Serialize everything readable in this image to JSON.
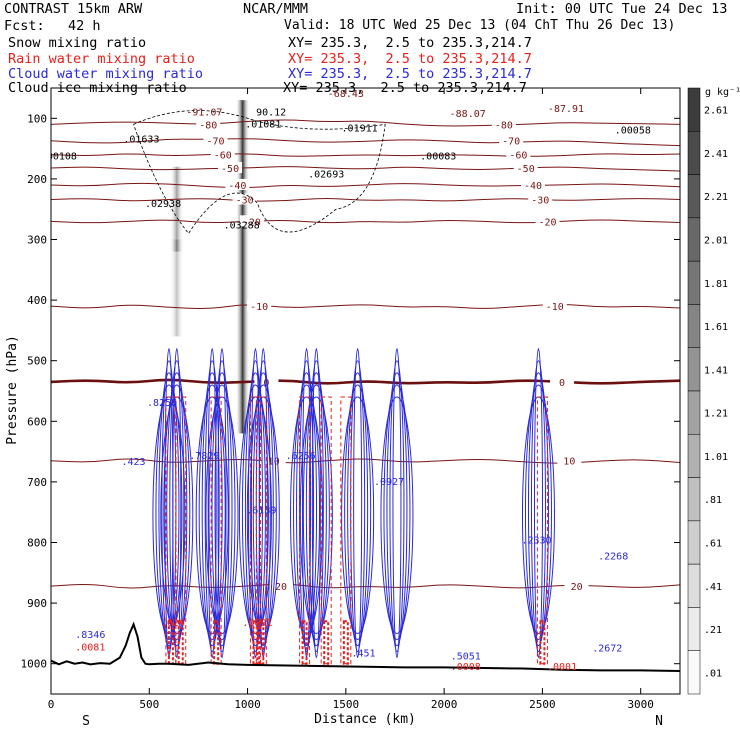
{
  "header": {
    "model": "CONTRAST 15km ARW",
    "center": "NCAR/MMM",
    "init": "Init: 00 UTC Tue 24 Dec 13",
    "fcst_label": "Fcst:",
    "fcst_value": "42 h",
    "valid": "Valid: 18 UTC Wed 25 Dec 13 (04 ChT Thu 26 Dec 13)",
    "fields": [
      {
        "label": "Snow mixing ratio",
        "xy": "XY= 235.3,  2.5 to 235.3,214.7",
        "color": "#000000"
      },
      {
        "label": "Rain water mixing ratio",
        "xy": "XY= 235.3,  2.5 to 235.3,214.7",
        "color": "#e8201c"
      },
      {
        "label": "Cloud water mixing ratio",
        "xy": "XY= 235.3,  2.5 to 235.3,214.7",
        "color": "#2a2ad8"
      },
      {
        "label": "Cloud ice mixing ratio",
        "xy": "XY= 235.3,  2.5 to 235.3,214.7",
        "color": "#000000"
      }
    ]
  },
  "chart_data": {
    "type": "cross-section",
    "title": "Vertical cross-section of hydrometeor mixing ratios and temperature",
    "xlabel": "Distance (km)",
    "ylabel": "Pressure (hPa)",
    "xlim": [
      0,
      3200
    ],
    "ylim": [
      1050,
      50
    ],
    "x_ticks": [
      0,
      500,
      1000,
      1500,
      2000,
      2500,
      3000
    ],
    "y_ticks": [
      100,
      200,
      300,
      400,
      500,
      600,
      700,
      800,
      900,
      1000
    ],
    "end_labels": {
      "left": "S",
      "right": "N"
    },
    "colorbar": {
      "unit": "g kg⁻¹",
      "labels": [
        "2.61",
        "2.41",
        "2.21",
        "2.01",
        "1.81",
        "1.61",
        "1.41",
        "1.21",
        "1.01",
        ".81",
        ".61",
        ".41",
        ".21",
        ".01"
      ]
    },
    "temperature_isotherms": [
      {
        "label": "-80",
        "p": 110,
        "x": [
          0,
          200,
          400,
          600,
          800,
          1000,
          1200,
          1400,
          1600,
          1800,
          2000,
          2200,
          2400,
          2600,
          2800,
          3000,
          3200
        ],
        "dp": [
          0,
          -3,
          -4,
          -2,
          0,
          -5,
          -8,
          -4,
          -6,
          0,
          3,
          2,
          0,
          -3,
          -2,
          -1,
          0
        ]
      },
      {
        "label": "-70",
        "p": 137,
        "x": [
          0,
          200,
          400,
          600,
          800,
          1000,
          1200,
          1400,
          1600,
          1800,
          2000,
          2200,
          2400,
          2600,
          2800,
          3000,
          3200
        ],
        "dp": [
          0,
          4,
          3,
          -3,
          -2,
          -4,
          0,
          3,
          1,
          -2,
          0,
          4,
          2,
          0,
          3,
          6,
          8
        ]
      },
      {
        "label": "-60",
        "p": 160,
        "x": [
          0,
          200,
          400,
          600,
          800,
          1000,
          1200,
          1400,
          1600,
          1800,
          2000,
          2200,
          2400,
          2600,
          2800,
          3000,
          3200
        ],
        "dp": [
          0,
          2,
          -2,
          2,
          0,
          -2,
          3,
          2,
          0,
          2,
          0,
          1,
          3,
          2,
          -2,
          0,
          -1
        ]
      },
      {
        "label": "-50",
        "p": 182,
        "x": [
          0,
          200,
          400,
          600,
          800,
          1000,
          1200,
          1400,
          1600,
          1800,
          2000,
          2200,
          2400,
          2600,
          2800,
          3000,
          3200
        ],
        "dp": [
          0,
          -2,
          2,
          3,
          1,
          0,
          -3,
          0,
          2,
          -2,
          1,
          3,
          0,
          -2,
          1,
          3,
          5
        ]
      },
      {
        "label": "-40",
        "p": 210,
        "x": [
          0,
          200,
          400,
          600,
          800,
          1000,
          1200,
          1400,
          1600,
          1800,
          2000,
          2200,
          2400,
          2600,
          2800,
          3000,
          3200
        ],
        "dp": [
          0,
          2,
          -3,
          -2,
          3,
          5,
          0,
          3,
          0,
          -3,
          0,
          2,
          1,
          0,
          -2,
          0,
          3
        ]
      },
      {
        "label": "-30",
        "p": 234,
        "x": [
          0,
          200,
          400,
          600,
          800,
          1000,
          1200,
          1400,
          1600,
          1800,
          2000,
          2200,
          2400,
          2600,
          2800,
          3000,
          3200
        ],
        "dp": [
          0,
          -2,
          3,
          0,
          -2,
          3,
          2,
          -3,
          2,
          0,
          3,
          0,
          -2,
          2,
          0,
          -2,
          0
        ]
      },
      {
        "label": "-20",
        "p": 270,
        "x": [
          0,
          200,
          400,
          600,
          800,
          1000,
          1200,
          1400,
          1600,
          1800,
          2000,
          2200,
          2400,
          2600,
          2800,
          3000,
          3200
        ],
        "dp": [
          0,
          3,
          0,
          -3,
          3,
          0,
          -2,
          3,
          0,
          2,
          -2,
          0,
          3,
          0,
          -3,
          0,
          2
        ]
      },
      {
        "label": "-10",
        "p": 410,
        "x": [
          0,
          200,
          400,
          600,
          800,
          1000,
          1200,
          1400,
          1600,
          1800,
          2000,
          2200,
          2400,
          2600,
          2800,
          3000,
          3200
        ],
        "dp": [
          0,
          4,
          -3,
          2,
          5,
          -4,
          3,
          0,
          -3,
          2,
          0,
          5,
          0,
          -4,
          2,
          0,
          3
        ]
      },
      {
        "label": "0",
        "p": 535,
        "x": [
          0,
          200,
          400,
          600,
          800,
          1000,
          1200,
          1400,
          1600,
          1800,
          2000,
          2200,
          2400,
          2600,
          2800,
          3000,
          3200
        ],
        "dp": [
          0,
          -3,
          2,
          -5,
          2,
          0,
          -3,
          4,
          -2,
          3,
          0,
          2,
          -3,
          0,
          3,
          0,
          -2
        ]
      },
      {
        "label": "10",
        "p": 665,
        "x": [
          0,
          200,
          400,
          600,
          800,
          1000,
          1200,
          1400,
          1600,
          1800,
          2000,
          2200,
          2400,
          2600,
          2800,
          3000,
          3200
        ],
        "dp": [
          0,
          3,
          -5,
          4,
          0,
          -3,
          5,
          0,
          -4,
          3,
          0,
          -3,
          2,
          5,
          0,
          -2,
          3
        ]
      },
      {
        "label": "20",
        "p": 872,
        "x": [
          0,
          200,
          400,
          600,
          800,
          1000,
          1200,
          1400,
          1600,
          1800,
          2000,
          2200,
          2400,
          2600,
          2800,
          3000,
          3200
        ],
        "dp": [
          0,
          -4,
          5,
          -2,
          3,
          0,
          -5,
          4,
          0,
          3,
          -3,
          0,
          4,
          -2,
          0,
          3,
          -2
        ]
      }
    ],
    "terrain": {
      "x": [
        0,
        40,
        80,
        120,
        160,
        200,
        250,
        300,
        350,
        380,
        400,
        420,
        440,
        460,
        480,
        500,
        550,
        600,
        700,
        800,
        900,
        1000,
        1200,
        1400,
        1600,
        1800,
        2000,
        2200,
        2400,
        2600,
        2800,
        3000,
        3200
      ],
      "p": [
        995,
        1001,
        996,
        1000,
        998,
        1001,
        999,
        1000,
        990,
        970,
        950,
        935,
        955,
        990,
        1000,
        1001,
        1000,
        1000,
        1002,
        998,
        1001,
        1002,
        1003,
        1004,
        1005,
        1006,
        1006,
        1007,
        1008,
        1010,
        1011,
        1011,
        1012
      ]
    },
    "snow_max_columns": [
      {
        "x": 640,
        "p_top": 180,
        "p_bottom": 320,
        "intensity": 0.4
      },
      {
        "x": 975,
        "p_top": 70,
        "p_bottom": 620,
        "intensity": 0.85
      },
      {
        "x": 640,
        "p_top": 300,
        "p_bottom": 460,
        "intensity": 0.25
      }
    ],
    "cloud_water_cells_x": [
      600,
      640,
      820,
      870,
      1040,
      1080,
      1300,
      1350,
      1560,
      1760,
      2480
    ],
    "rain_water_cells_x": [
      610,
      660,
      840,
      1040,
      1070,
      1290,
      1400,
      1500,
      2500
    ],
    "annotations": [
      {
        "text": "-68.43",
        "x": 1500,
        "p": 65,
        "color": "#7a1515"
      },
      {
        "text": "-91.07",
        "x": 780,
        "p": 95,
        "color": "#7a1515"
      },
      {
        "text": "90.12",
        "x": 1120,
        "p": 95,
        "color": "#000000"
      },
      {
        "text": ".01081",
        "x": 1080,
        "p": 115,
        "color": "#000000"
      },
      {
        "text": "-88.07",
        "x": 2120,
        "p": 98,
        "color": "#7a1515"
      },
      {
        "text": "-87.91",
        "x": 2620,
        "p": 90,
        "color": "#7a1515"
      },
      {
        "text": ".01633",
        "x": 460,
        "p": 140,
        "color": "#000000"
      },
      {
        "text": ".01911",
        "x": 1570,
        "p": 122,
        "color": "#000000"
      },
      {
        "text": ".00058",
        "x": 2960,
        "p": 125,
        "color": "#000000"
      },
      {
        "text": ".00108",
        "x": 40,
        "p": 168,
        "color": "#000000"
      },
      {
        "text": ".00083",
        "x": 1970,
        "p": 168,
        "color": "#000000"
      },
      {
        "text": ".02693",
        "x": 1400,
        "p": 198,
        "color": "#000000"
      },
      {
        "text": ".02938",
        "x": 570,
        "p": 246,
        "color": "#000000"
      },
      {
        "text": ".03288",
        "x": 970,
        "p": 282,
        "color": "#000000"
      },
      {
        "text": ".8256",
        "x": 565,
        "p": 575,
        "color": "#2a2ad8"
      },
      {
        "text": ".423",
        "x": 420,
        "p": 672,
        "color": "#2a2ad8"
      },
      {
        "text": ".7829",
        "x": 780,
        "p": 662,
        "color": "#2a2ad8"
      },
      {
        "text": ".6256",
        "x": 1270,
        "p": 662,
        "color": "#2a2ad8"
      },
      {
        "text": ".6139",
        "x": 1070,
        "p": 752,
        "color": "#2a2ad8"
      },
      {
        "text": ".0927",
        "x": 1720,
        "p": 705,
        "color": "#2a2ad8"
      },
      {
        "text": ".2330",
        "x": 2470,
        "p": 802,
        "color": "#2a2ad8"
      },
      {
        "text": ".2268",
        "x": 2860,
        "p": 828,
        "color": "#2a2ad8"
      },
      {
        "text": ".8346",
        "x": 200,
        "p": 958,
        "color": "#2a2ad8"
      },
      {
        "text": ".0081",
        "x": 200,
        "p": 978,
        "color": "#e8201c"
      },
      {
        "text": ".5051",
        "x": 2110,
        "p": 993,
        "color": "#2a2ad8"
      },
      {
        "text": ".0008",
        "x": 2110,
        "p": 1010,
        "color": "#e8201c"
      },
      {
        "text": ".2672",
        "x": 2830,
        "p": 980,
        "color": "#2a2ad8"
      },
      {
        "text": ".451",
        "x": 1590,
        "p": 988,
        "color": "#2a2ad8"
      },
      {
        "text": ".0001",
        "x": 2600,
        "p": 1010,
        "color": "#e8201c"
      },
      {
        "text": ".024",
        "x": 620,
        "p": 938,
        "color": "#e8201c"
      },
      {
        "text": ".0091",
        "x": 1050,
        "p": 938,
        "color": "#e8201c"
      }
    ]
  }
}
